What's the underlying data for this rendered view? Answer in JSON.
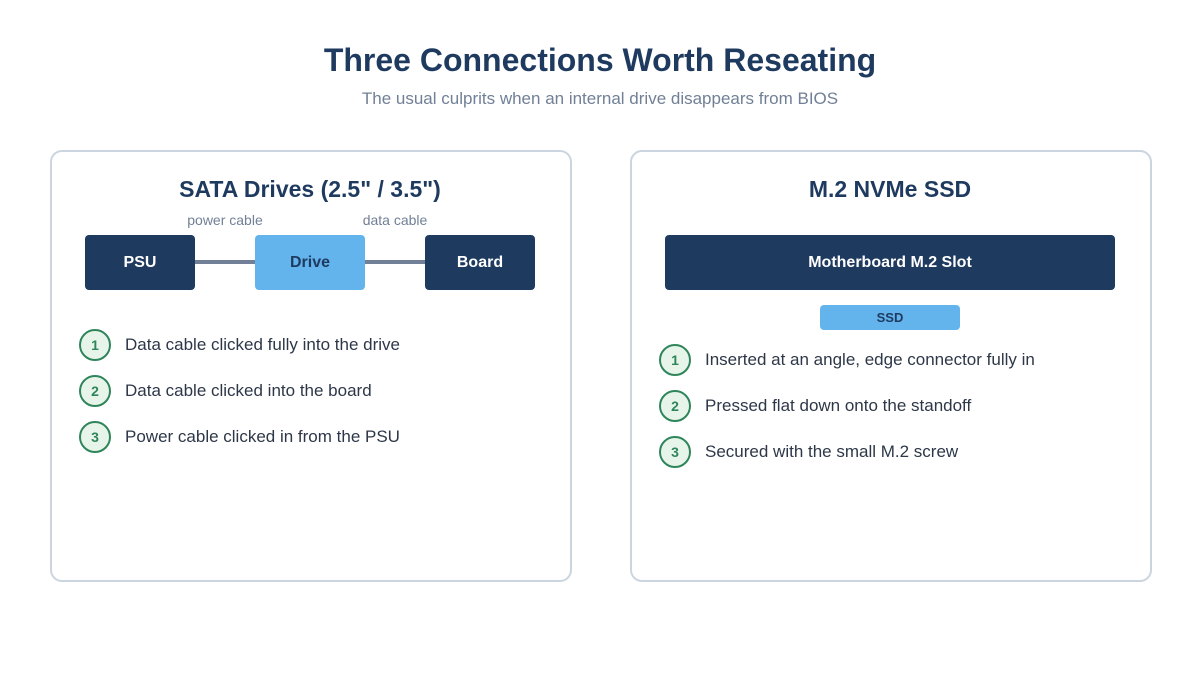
{
  "header": {
    "title": "Three Connections Worth Reseating",
    "subtitle": "The usual culprits when an internal drive disappears from BIOS"
  },
  "panels": [
    {
      "title": "SATA Drives (2.5\" / 3.5\")",
      "diagram": {
        "nodes": [
          "PSU",
          "Drive",
          "Board"
        ],
        "edge_labels": [
          "power cable",
          "data cable"
        ]
      },
      "steps": [
        {
          "number": 1,
          "text": "Data cable clicked fully into the drive"
        },
        {
          "number": 2,
          "text": "Data cable clicked into the board"
        },
        {
          "number": 3,
          "text": "Power cable clicked in from the PSU"
        }
      ]
    },
    {
      "title": "M.2 NVMe SSD",
      "diagram": {
        "slot": "Motherboard M.2 Slot",
        "module": "SSD"
      },
      "steps": [
        {
          "number": 1,
          "text": "Inserted at an angle, edge connector fully in"
        },
        {
          "number": 2,
          "text": "Pressed flat down onto the standoff"
        },
        {
          "number": 3,
          "text": "Secured with the small M.2 screw"
        }
      ]
    }
  ]
}
